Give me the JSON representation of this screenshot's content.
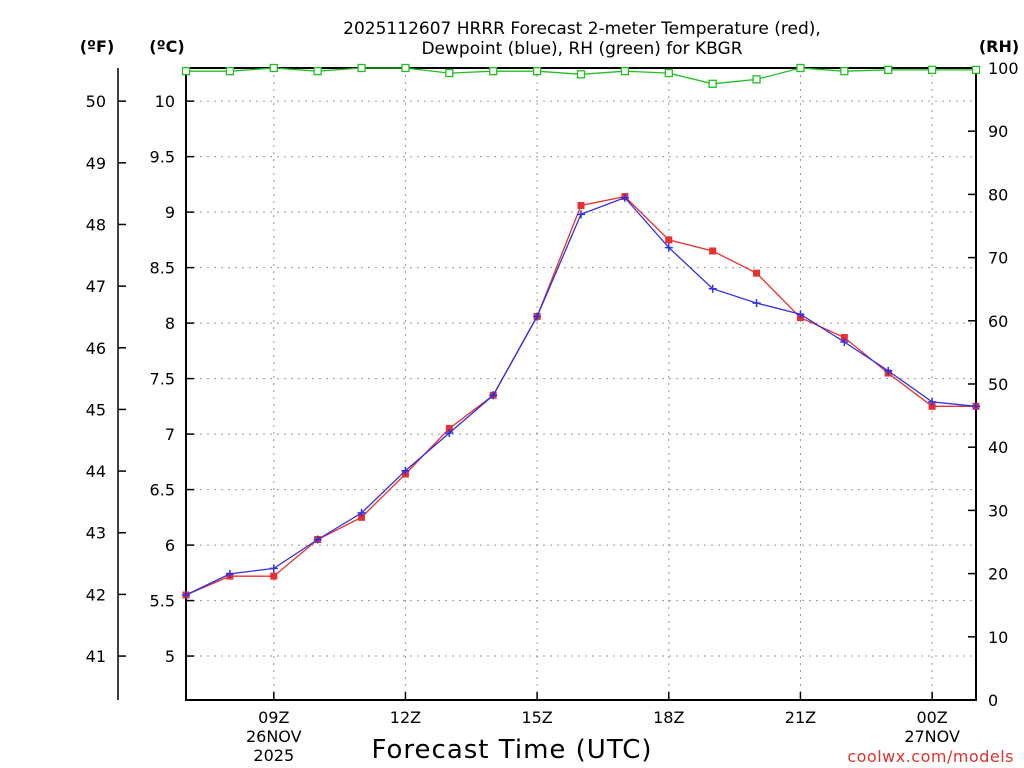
{
  "chart_data": {
    "type": "line",
    "title_line1": "2025112607 HRRR Forecast 2-meter Temperature (red),",
    "title_line2": "Dewpoint (blue), RH (green) for KBGR",
    "xlabel": "Forecast Time (UTC)",
    "credit": "coolwx.com/models",
    "units": {
      "left_f": "(ºF)",
      "left_c": "(ºC)",
      "right": "(RH)"
    },
    "x_hours": [
      7,
      8,
      9,
      10,
      11,
      12,
      13,
      14,
      15,
      16,
      17,
      18,
      19,
      20,
      21,
      22,
      23,
      24,
      25
    ],
    "xlim": [
      7,
      25
    ],
    "x_ticks": [
      {
        "hour": 9,
        "label": "09Z",
        "date": "26NOV",
        "year": "2025"
      },
      {
        "hour": 12,
        "label": "12Z"
      },
      {
        "hour": 15,
        "label": "15Z"
      },
      {
        "hour": 18,
        "label": "18Z"
      },
      {
        "hour": 21,
        "label": "21Z"
      },
      {
        "hour": 24,
        "label": "00Z",
        "date": "27NOV"
      }
    ],
    "ylim_c": [
      4.55,
      10.15
    ],
    "y_ticks_c": [
      "5",
      "5.5",
      "6",
      "6.5",
      "7",
      "7.5",
      "8",
      "8.5",
      "9",
      "9.5",
      "10"
    ],
    "y_ticks_f": [
      "41",
      "42",
      "43",
      "44",
      "45",
      "46",
      "47",
      "48",
      "49",
      "50"
    ],
    "ylim_rh": [
      0,
      100
    ],
    "y_ticks_rh": [
      "0",
      "10",
      "20",
      "30",
      "40",
      "50",
      "60",
      "70",
      "80",
      "90",
      "100"
    ],
    "series": [
      {
        "name": "Temperature",
        "color": "#e83030",
        "axis": "C",
        "marker": "square",
        "values": [
          5.55,
          5.72,
          5.72,
          6.05,
          6.25,
          6.64,
          7.05,
          7.35,
          8.06,
          9.06,
          9.14,
          8.75,
          8.65,
          8.45,
          8.05,
          7.87,
          7.55,
          7.25,
          7.25
        ]
      },
      {
        "name": "Dewpoint",
        "color": "#3030e0",
        "axis": "C",
        "marker": "plus",
        "values": [
          5.55,
          5.74,
          5.79,
          6.05,
          6.29,
          6.67,
          7.01,
          7.35,
          8.06,
          8.98,
          9.13,
          8.68,
          8.31,
          8.18,
          8.08,
          7.83,
          7.57,
          7.29,
          7.25
        ]
      },
      {
        "name": "RH",
        "color": "#20c020",
        "axis": "RH",
        "marker": "open-square",
        "values": [
          99.5,
          99.5,
          100,
          99.5,
          100,
          100,
          99.2,
          99.5,
          99.5,
          99.0,
          99.5,
          99.2,
          97.5,
          98.2,
          100,
          99.5,
          99.7,
          99.7,
          99.7
        ]
      }
    ]
  }
}
